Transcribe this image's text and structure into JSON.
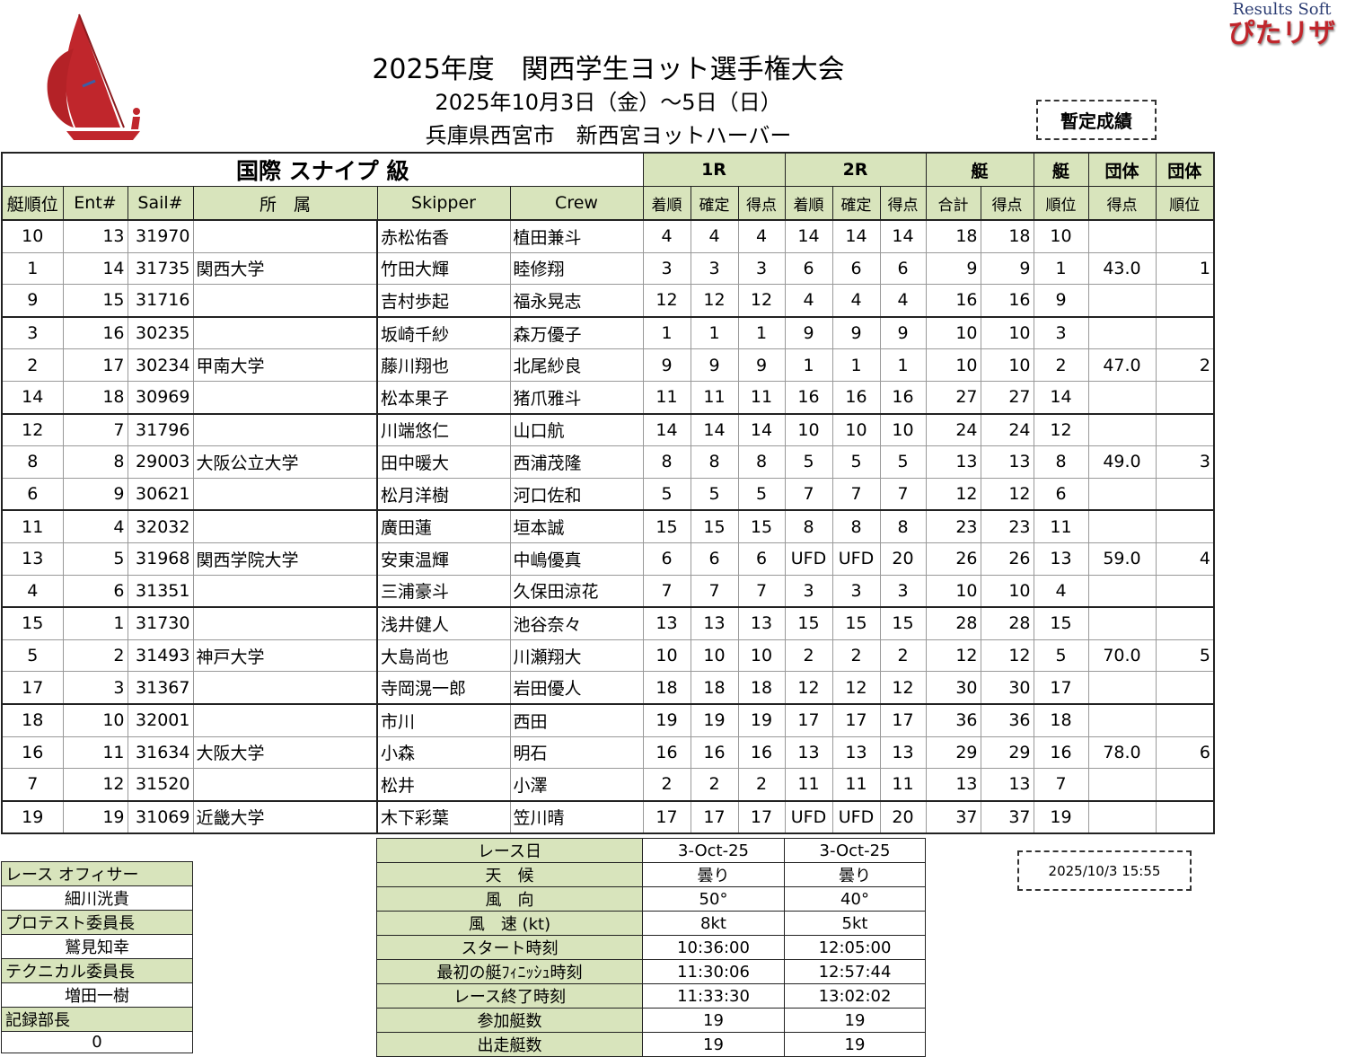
{
  "header": {
    "title": "2025年度　関西学生ヨット選手権大会",
    "dates": "2025年10月3日（金）～5日（日）",
    "venue": "兵庫県西宮市　新西宮ヨットハーバー",
    "status_badge": "暫定成績",
    "brand_en": "Results Soft",
    "brand_jp": "ぴたリザ",
    "logo_color": "#c0262c",
    "header_green": "#d8e4bc"
  },
  "table": {
    "class_title": "国際 スナイプ 級",
    "group_headers": [
      "1R",
      "2R",
      "艇",
      "艇",
      "団体",
      "団体"
    ],
    "columns": [
      "艇順位",
      "Ent#",
      "Sail#",
      "所　属",
      "Skipper",
      "Crew",
      "着順",
      "確定",
      "得点",
      "着順",
      "確定",
      "得点",
      "合計",
      "得点",
      "順位",
      "得点",
      "順位"
    ],
    "rows": [
      [
        "10",
        "13",
        "31970",
        "",
        "赤松佑香",
        "植田兼斗",
        "4",
        "4",
        "4",
        "14",
        "14",
        "14",
        "18",
        "18",
        "10",
        "",
        ""
      ],
      [
        "1",
        "14",
        "31735",
        "関西大学",
        "竹田大輝",
        "睦修翔",
        "3",
        "3",
        "3",
        "6",
        "6",
        "6",
        "9",
        "9",
        "1",
        "43.0",
        "1"
      ],
      [
        "9",
        "15",
        "31716",
        "",
        "吉村歩起",
        "福永晃志",
        "12",
        "12",
        "12",
        "4",
        "4",
        "4",
        "16",
        "16",
        "9",
        "",
        ""
      ],
      [
        "3",
        "16",
        "30235",
        "",
        "坂崎千紗",
        "森万優子",
        "1",
        "1",
        "1",
        "9",
        "9",
        "9",
        "10",
        "10",
        "3",
        "",
        ""
      ],
      [
        "2",
        "17",
        "30234",
        "甲南大学",
        "藤川翔也",
        "北尾紗良",
        "9",
        "9",
        "9",
        "1",
        "1",
        "1",
        "10",
        "10",
        "2",
        "47.0",
        "2"
      ],
      [
        "14",
        "18",
        "30969",
        "",
        "松本果子",
        "猪爪雅斗",
        "11",
        "11",
        "11",
        "16",
        "16",
        "16",
        "27",
        "27",
        "14",
        "",
        ""
      ],
      [
        "12",
        "7",
        "31796",
        "",
        "川端悠仁",
        "山口航",
        "14",
        "14",
        "14",
        "10",
        "10",
        "10",
        "24",
        "24",
        "12",
        "",
        ""
      ],
      [
        "8",
        "8",
        "29003",
        "大阪公立大学",
        "田中暖大",
        "西浦茂隆",
        "8",
        "8",
        "8",
        "5",
        "5",
        "5",
        "13",
        "13",
        "8",
        "49.0",
        "3"
      ],
      [
        "6",
        "9",
        "30621",
        "",
        "松月洋樹",
        "河口佐和",
        "5",
        "5",
        "5",
        "7",
        "7",
        "7",
        "12",
        "12",
        "6",
        "",
        ""
      ],
      [
        "11",
        "4",
        "32032",
        "",
        "廣田蓮",
        "垣本誠",
        "15",
        "15",
        "15",
        "8",
        "8",
        "8",
        "23",
        "23",
        "11",
        "",
        ""
      ],
      [
        "13",
        "5",
        "31968",
        "関西学院大学",
        "安東温輝",
        "中嶋優真",
        "6",
        "6",
        "6",
        "UFD",
        "UFD",
        "20",
        "26",
        "26",
        "13",
        "59.0",
        "4"
      ],
      [
        "4",
        "6",
        "31351",
        "",
        "三浦豪斗",
        "久保田涼花",
        "7",
        "7",
        "7",
        "3",
        "3",
        "3",
        "10",
        "10",
        "4",
        "",
        ""
      ],
      [
        "15",
        "1",
        "31730",
        "",
        "浅井健人",
        "池谷奈々",
        "13",
        "13",
        "13",
        "15",
        "15",
        "15",
        "28",
        "28",
        "15",
        "",
        ""
      ],
      [
        "5",
        "2",
        "31493",
        "神戸大学",
        "大島尚也",
        "川瀬翔大",
        "10",
        "10",
        "10",
        "2",
        "2",
        "2",
        "12",
        "12",
        "5",
        "70.0",
        "5"
      ],
      [
        "17",
        "3",
        "31367",
        "",
        "寺岡滉一郎",
        "岩田優人",
        "18",
        "18",
        "18",
        "12",
        "12",
        "12",
        "30",
        "30",
        "17",
        "",
        ""
      ],
      [
        "18",
        "10",
        "32001",
        "",
        "市川",
        "西田",
        "19",
        "19",
        "19",
        "17",
        "17",
        "17",
        "36",
        "36",
        "18",
        "",
        ""
      ],
      [
        "16",
        "11",
        "31634",
        "大阪大学",
        "小森",
        "明石",
        "16",
        "16",
        "16",
        "13",
        "13",
        "13",
        "29",
        "29",
        "16",
        "78.0",
        "6"
      ],
      [
        "7",
        "12",
        "31520",
        "",
        "松井",
        "小澤",
        "2",
        "2",
        "2",
        "11",
        "11",
        "11",
        "13",
        "13",
        "7",
        "",
        ""
      ],
      [
        "19",
        "19",
        "31069",
        "近畿大学",
        "木下彩葉",
        "笠川晴",
        "17",
        "17",
        "17",
        "UFD",
        "UFD",
        "20",
        "37",
        "37",
        "19",
        "",
        ""
      ]
    ]
  },
  "officials": [
    {
      "role": "レース オフィサー",
      "name": "細川洸貴"
    },
    {
      "role": "プロテスト委員長",
      "name": "鷲見知幸"
    },
    {
      "role": "テクニカル委員長",
      "name": "増田一樹"
    },
    {
      "role": "記録部長",
      "name": "0"
    }
  ],
  "race_info": [
    {
      "label": "レース日",
      "r1": "3-Oct-25",
      "r2": "3-Oct-25"
    },
    {
      "label": "天　候",
      "r1": "曇り",
      "r2": "曇り"
    },
    {
      "label": "風　向",
      "r1": "50°",
      "r2": "40°"
    },
    {
      "label": "風　速 (kt)",
      "r1": "8kt",
      "r2": "5kt"
    },
    {
      "label": "スタート時刻",
      "r1": "10:36:00",
      "r2": "12:05:00"
    },
    {
      "label": "最初の艇ﾌｨﾆｯｼｭ時刻",
      "r1": "11:30:06",
      "r2": "12:57:44"
    },
    {
      "label": "レース終了時刻",
      "r1": "11:33:30",
      "r2": "13:02:02"
    },
    {
      "label": "参加艇数",
      "r1": "19",
      "r2": "19"
    },
    {
      "label": "出走艇数",
      "r1": "19",
      "r2": "19"
    }
  ],
  "timestamp": "2025/10/3 15:55"
}
